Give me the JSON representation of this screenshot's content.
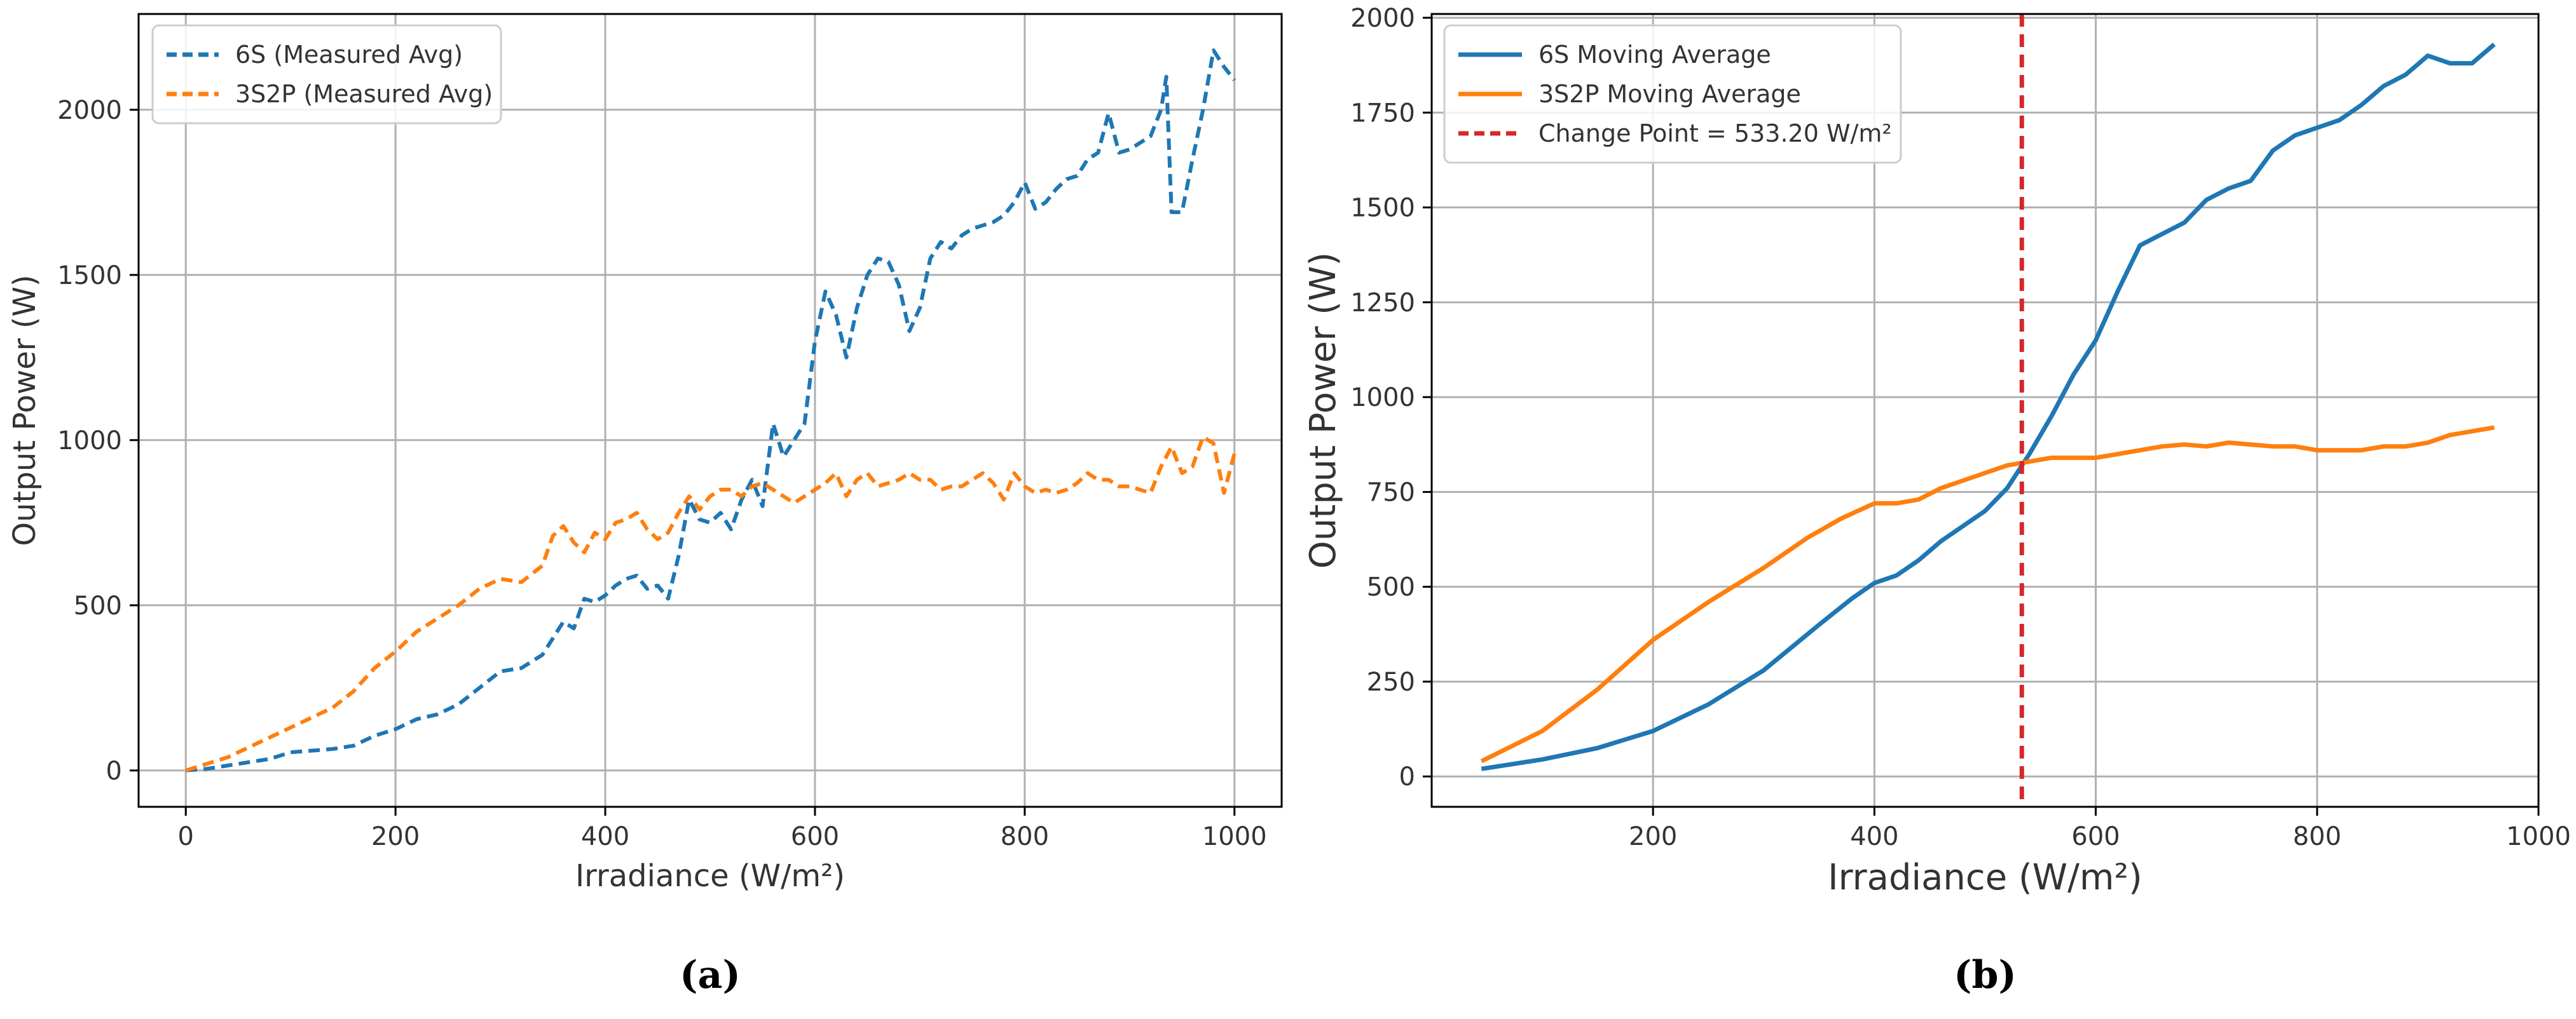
{
  "chart_data": [
    {
      "panel": "(a)",
      "type": "line",
      "title": "",
      "xlabel": "Irradiance (W/m²)",
      "ylabel": "Output Power (W)",
      "xlim": [
        -45,
        1045
      ],
      "ylim": [
        -110,
        2290
      ],
      "xticks": [
        0,
        200,
        400,
        600,
        800,
        1000
      ],
      "yticks": [
        0,
        500,
        1000,
        1500,
        2000
      ],
      "grid": true,
      "legend": "top-left",
      "series": [
        {
          "name": "6S (Measured Avg)",
          "color": "#1f77b4",
          "style": "dashed",
          "x": [
            0,
            20,
            40,
            60,
            80,
            100,
            120,
            140,
            160,
            180,
            200,
            220,
            240,
            260,
            280,
            300,
            320,
            340,
            350,
            360,
            370,
            380,
            390,
            400,
            410,
            420,
            430,
            440,
            450,
            460,
            470,
            480,
            490,
            500,
            510,
            520,
            530,
            540,
            550,
            560,
            570,
            580,
            590,
            600,
            610,
            620,
            630,
            640,
            650,
            660,
            670,
            680,
            690,
            700,
            710,
            720,
            730,
            740,
            750,
            760,
            770,
            780,
            790,
            800,
            810,
            820,
            830,
            840,
            850,
            860,
            870,
            880,
            890,
            900,
            910,
            920,
            930,
            935,
            940,
            950,
            960,
            970,
            980,
            990,
            1000
          ],
          "y": [
            0,
            5,
            15,
            25,
            35,
            55,
            60,
            65,
            75,
            105,
            125,
            155,
            170,
            200,
            250,
            300,
            310,
            350,
            400,
            450,
            430,
            520,
            510,
            530,
            560,
            580,
            590,
            550,
            560,
            520,
            650,
            820,
            760,
            750,
            780,
            730,
            820,
            880,
            800,
            1050,
            950,
            1000,
            1050,
            1300,
            1450,
            1380,
            1250,
            1400,
            1500,
            1550,
            1540,
            1470,
            1330,
            1400,
            1550,
            1600,
            1580,
            1620,
            1640,
            1650,
            1660,
            1680,
            1720,
            1780,
            1700,
            1720,
            1760,
            1790,
            1800,
            1850,
            1870,
            1990,
            1870,
            1880,
            1900,
            1920,
            2000,
            2100,
            1690,
            1690,
            1850,
            2000,
            2180,
            2130,
            2090
          ]
        },
        {
          "name": "3S2P (Measured Avg)",
          "color": "#ff7f0e",
          "style": "dashed",
          "x": [
            0,
            20,
            40,
            60,
            80,
            100,
            120,
            140,
            160,
            180,
            200,
            220,
            240,
            260,
            280,
            300,
            320,
            340,
            350,
            360,
            370,
            380,
            390,
            400,
            410,
            420,
            430,
            440,
            450,
            460,
            470,
            480,
            490,
            500,
            510,
            520,
            530,
            540,
            550,
            560,
            570,
            580,
            590,
            600,
            610,
            620,
            630,
            640,
            650,
            660,
            670,
            680,
            690,
            700,
            710,
            720,
            730,
            740,
            750,
            760,
            770,
            780,
            790,
            800,
            810,
            820,
            830,
            840,
            850,
            860,
            870,
            880,
            890,
            900,
            910,
            920,
            930,
            940,
            950,
            960,
            970,
            980,
            990,
            1000
          ],
          "y": [
            0,
            20,
            40,
            70,
            100,
            130,
            160,
            190,
            240,
            310,
            360,
            420,
            460,
            500,
            550,
            580,
            570,
            620,
            710,
            740,
            690,
            660,
            720,
            700,
            750,
            760,
            780,
            730,
            700,
            720,
            780,
            830,
            790,
            830,
            850,
            850,
            830,
            860,
            870,
            850,
            830,
            810,
            830,
            850,
            870,
            900,
            830,
            880,
            900,
            860,
            870,
            880,
            900,
            880,
            880,
            850,
            860,
            860,
            880,
            900,
            870,
            820,
            900,
            860,
            840,
            850,
            840,
            850,
            870,
            900,
            880,
            880,
            860,
            860,
            850,
            840,
            920,
            980,
            900,
            920,
            1010,
            990,
            840,
            960
          ]
        }
      ]
    },
    {
      "panel": "(b)",
      "type": "line",
      "title": "",
      "xlabel": "Irradiance (W/m²)",
      "ylabel": "Output Power (W)",
      "xlim": [
        0,
        1000
      ],
      "ylim": [
        -80,
        2010
      ],
      "xticks": [
        200,
        400,
        600,
        800,
        1000
      ],
      "yticks": [
        0,
        250,
        500,
        750,
        1000,
        1250,
        1500,
        1750,
        2000
      ],
      "grid": true,
      "legend": "top-left",
      "change_point": {
        "x": 533.2,
        "label": "Change Point = 533.20 W/m²",
        "color": "#d62728",
        "style": "dashed"
      },
      "series": [
        {
          "name": "6S Moving Average",
          "color": "#1f77b4",
          "style": "solid",
          "x": [
            45,
            100,
            150,
            200,
            250,
            300,
            350,
            380,
            400,
            420,
            440,
            460,
            480,
            500,
            520,
            540,
            560,
            580,
            600,
            620,
            640,
            660,
            680,
            700,
            720,
            740,
            760,
            780,
            800,
            820,
            840,
            860,
            880,
            900,
            920,
            940,
            960
          ],
          "y": [
            20,
            45,
            75,
            120,
            190,
            280,
            400,
            470,
            510,
            530,
            570,
            620,
            660,
            700,
            760,
            850,
            950,
            1060,
            1150,
            1280,
            1400,
            1430,
            1460,
            1520,
            1550,
            1570,
            1650,
            1690,
            1710,
            1730,
            1770,
            1820,
            1850,
            1900,
            1880,
            1880,
            1930
          ]
        },
        {
          "name": "3S2P Moving Average",
          "color": "#ff7f0e",
          "style": "solid",
          "x": [
            45,
            100,
            150,
            200,
            250,
            300,
            340,
            370,
            400,
            420,
            440,
            460,
            480,
            500,
            520,
            540,
            560,
            580,
            600,
            620,
            640,
            660,
            680,
            700,
            720,
            740,
            760,
            780,
            800,
            820,
            840,
            860,
            880,
            900,
            920,
            940,
            960
          ],
          "y": [
            40,
            120,
            230,
            360,
            460,
            550,
            630,
            680,
            720,
            720,
            730,
            760,
            780,
            800,
            820,
            830,
            840,
            840,
            840,
            850,
            860,
            870,
            875,
            870,
            880,
            875,
            870,
            870,
            860,
            860,
            860,
            870,
            870,
            880,
            900,
            910,
            920
          ]
        }
      ]
    }
  ]
}
